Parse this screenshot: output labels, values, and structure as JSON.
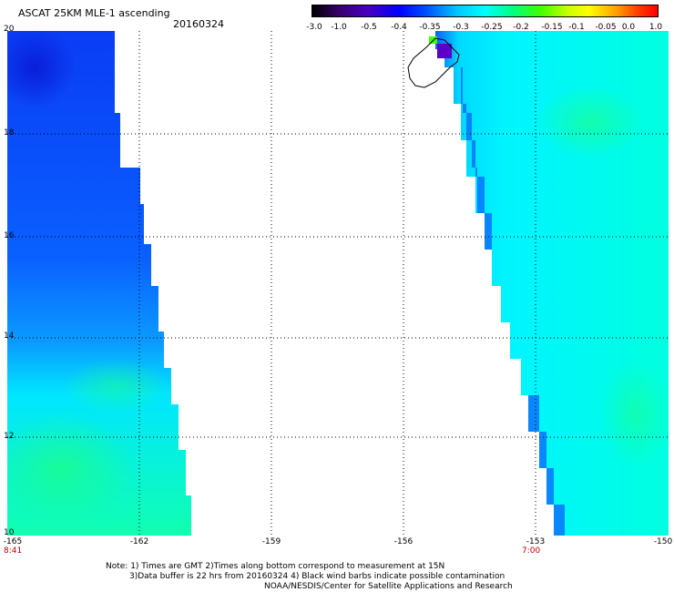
{
  "header": {
    "title": "ASCAT 25KM MLE-1 ascending",
    "date": "20160324"
  },
  "colorbar": {
    "labels": [
      "-3.0",
      "-1.0",
      "-0.5",
      "-0.4",
      "-0.35",
      "-0.3",
      "-0.25",
      "-0.2",
      "-0.15",
      "-0.1",
      "-0.05",
      "0.0",
      "1.0"
    ]
  },
  "map": {
    "lat_labels": [
      "20",
      "18",
      "16",
      "14",
      "12",
      "10"
    ],
    "lon_labels": [
      "-165",
      "-162",
      "-159",
      "-156",
      "-153",
      "-150"
    ],
    "time_labels": [
      "8:41",
      "7:00"
    ],
    "colors": {
      "dark": "#0a2cf0",
      "blue": "#0a5cff",
      "mid": "#0aa8ff",
      "cyan": "#00f0ff",
      "green": "#10ff90",
      "violet": "#5a00c8"
    }
  },
  "notes": {
    "line1": "Note: 1) Times are GMT 2)Times along bottom correspond to measurement at 15N",
    "line2": "3)Data buffer is 22 hrs from 20160324 4) Black wind barbs indicate possible contamination",
    "line3": "NOAA/NESDIS/Center for Satellite Applications and Research"
  }
}
